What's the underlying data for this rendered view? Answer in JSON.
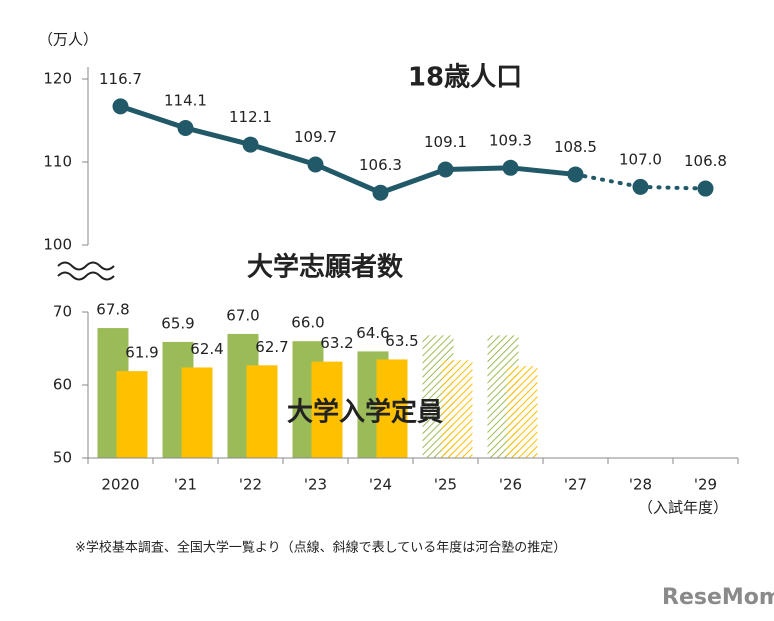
{
  "chart_data": [
    {
      "type": "line",
      "y_label": "（万人）",
      "ylim": [
        100,
        120
      ],
      "yticks": [
        100,
        110,
        120
      ],
      "series": [
        {
          "name": "18歳人口",
          "color": "#215968",
          "values": [
            116.7,
            114.1,
            112.1,
            109.7,
            106.3,
            109.1,
            109.3,
            108.5,
            107.0,
            106.8
          ],
          "value_labels": [
            "116.7",
            "114.1",
            "112.1",
            "109.7",
            "106.3",
            "109.1",
            "109.3",
            "108.5",
            "107.0",
            "106.8"
          ],
          "dotted": [
            false,
            false,
            false,
            false,
            false,
            false,
            false,
            false,
            true,
            true
          ]
        }
      ]
    },
    {
      "type": "bar",
      "x_label": "（入試年度）",
      "categories": [
        "2020",
        "'21",
        "'22",
        "'23",
        "'24",
        "'25",
        "'26",
        "'27",
        "'28",
        "'29"
      ],
      "ylim": [
        50,
        70
      ],
      "yticks": [
        50,
        60,
        70
      ],
      "hatched": [
        false,
        false,
        false,
        false,
        false,
        true,
        true,
        false,
        false,
        false
      ],
      "series": [
        {
          "name": "大学志願者数",
          "color": "#9bbb59",
          "values": [
            67.8,
            65.9,
            67.0,
            66.0,
            64.6,
            66.8,
            66.8,
            null,
            null,
            null
          ],
          "value_labels": [
            "67.8",
            "65.9",
            "67.0",
            "66.0",
            "64.6",
            null,
            null,
            null,
            null,
            null
          ]
        },
        {
          "name": "大学入学定員",
          "color": "#ffc000",
          "values": [
            61.9,
            62.4,
            62.7,
            63.2,
            63.5,
            63.4,
            62.6,
            null,
            null,
            null
          ],
          "value_labels": [
            "61.9",
            "62.4",
            "62.7",
            "63.2",
            "63.5",
            null,
            null,
            null,
            null,
            null
          ]
        }
      ]
    }
  ],
  "footnote": "※学校基本調査、全国大学一覧より（点線、斜線で表している年度は河合塾の推定）",
  "logo": "ReseMom"
}
